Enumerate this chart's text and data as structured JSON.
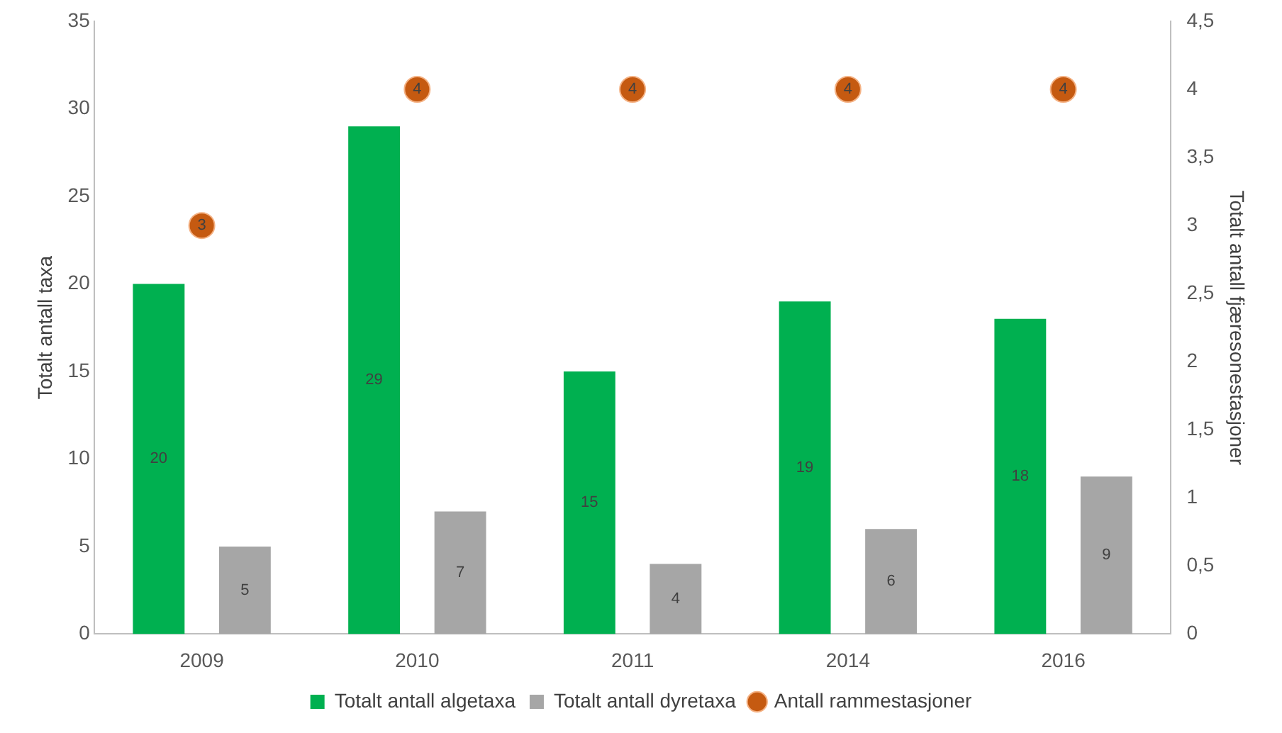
{
  "chart_data": {
    "type": "bar",
    "categories": [
      "2009",
      "2010",
      "2011",
      "2014",
      "2016"
    ],
    "ylabel": "Totalt antall taxa",
    "y2label": "Totalt antall fjæresonestasjoner",
    "ylim": [
      0,
      35
    ],
    "yticks": [
      0,
      5,
      10,
      15,
      20,
      25,
      30,
      35
    ],
    "y2lim": [
      0,
      4.5
    ],
    "y2ticks": [
      0,
      {
        "value": 0.5,
        "label": "0,5"
      },
      1,
      {
        "value": 1.5,
        "label": "1,5"
      },
      2,
      {
        "value": 2.5,
        "label": "2,5"
      },
      3,
      {
        "value": 3.5,
        "label": "3,5"
      },
      4,
      {
        "value": 4.5,
        "label": "4,5"
      }
    ],
    "series": [
      {
        "name": "Totalt antall algetaxa",
        "color": "#00b050",
        "values": [
          20,
          29,
          15,
          19,
          18
        ]
      },
      {
        "name": "Totalt antall dyretaxa",
        "color": "#a6a6a6",
        "values": [
          5,
          7,
          4,
          6,
          9
        ]
      },
      {
        "name": "Antall rammestasjoner",
        "type": "scatter",
        "axis": "y2",
        "color": "#c55a11",
        "values": [
          3,
          4,
          4,
          4,
          4
        ],
        "marker": "circle"
      }
    ],
    "data_labels": true,
    "grid": false,
    "legend": "bottom"
  }
}
